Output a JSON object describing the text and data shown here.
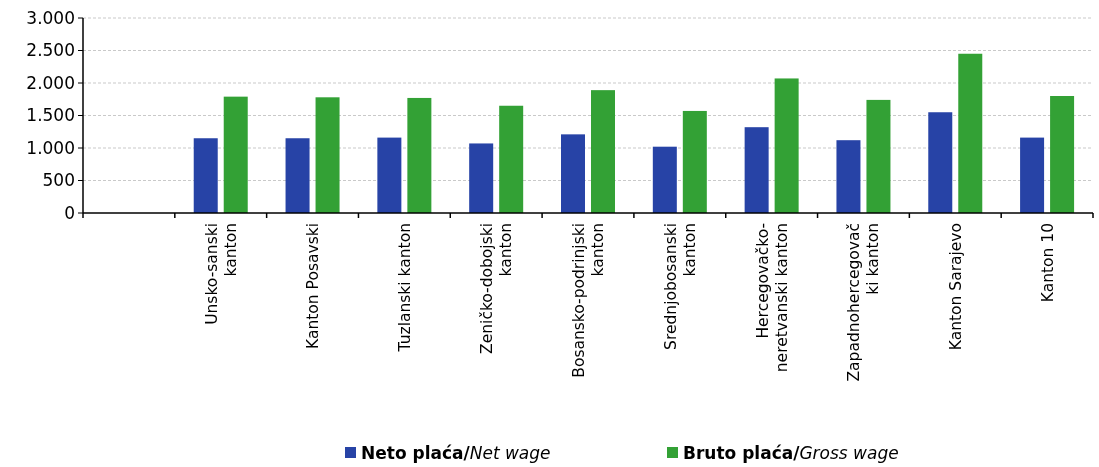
{
  "chart_data": {
    "type": "bar",
    "categories": [
      null,
      "Unsko-sanski\nkanton",
      "Kanton Posavski",
      "Tuzlanski kanton",
      "Zeničko-dobojski\nkanton",
      "Bosansko-podrinjski\nkanton",
      "Srednjobosanski\nkanton",
      "Hercegovačko-\nneretvanski kanton",
      "Zapadnohercegovač\nki kanton",
      "Kanton Sarajevo",
      "Kanton 10"
    ],
    "series": [
      {
        "name": "Neto plaća/Net wage",
        "color": "#2743a6",
        "values": [
          null,
          1150,
          1150,
          1160,
          1070,
          1210,
          1020,
          1320,
          1120,
          1550,
          1160
        ]
      },
      {
        "name": "Bruto plaća/Gross wage",
        "color": "#33a135",
        "values": [
          null,
          1790,
          1780,
          1770,
          1650,
          1890,
          1570,
          2070,
          1740,
          2450,
          1800
        ]
      }
    ],
    "ylim": [
      0,
      3000
    ],
    "yticks": [
      {
        "value": 0,
        "label": "0"
      },
      {
        "value": 500,
        "label": "500"
      },
      {
        "value": 1000,
        "label": "1.000"
      },
      {
        "value": 1500,
        "label": "1.500"
      },
      {
        "value": 2000,
        "label": "2.000"
      },
      {
        "value": 2500,
        "label": "2.500"
      },
      {
        "value": 3000,
        "label": "3.000"
      }
    ],
    "grid": "y",
    "legend": "bottom"
  }
}
